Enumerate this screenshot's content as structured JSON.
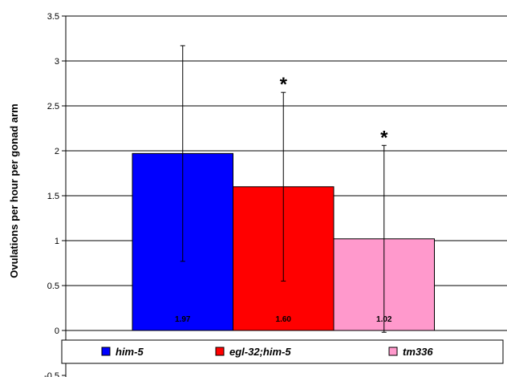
{
  "chart_data": {
    "type": "bar",
    "title": "",
    "xlabel": "",
    "ylabel": "Ovulations per hour per gonad arm",
    "ylim": [
      -0.5,
      3.5
    ],
    "yticks": [
      "-0.5",
      "0",
      "0.5",
      "1",
      "1.5",
      "2",
      "2.5",
      "3",
      "3.5"
    ],
    "grid": true,
    "legend_position": "bottom",
    "series": [
      {
        "name": "him-5",
        "value": 1.97,
        "label": "1.97",
        "error": 1.2,
        "significant": false,
        "sig_label": "",
        "color": "#0000ff"
      },
      {
        "name": "egl-32;him-5",
        "value": 1.6,
        "label": "1.60",
        "error": 1.05,
        "significant": true,
        "sig_label": "*",
        "color": "#ff0000"
      },
      {
        "name": "tm336",
        "value": 1.02,
        "label": "1.02",
        "error": 1.04,
        "significant": true,
        "sig_label": "*",
        "color": "#ff99cc"
      }
    ]
  }
}
